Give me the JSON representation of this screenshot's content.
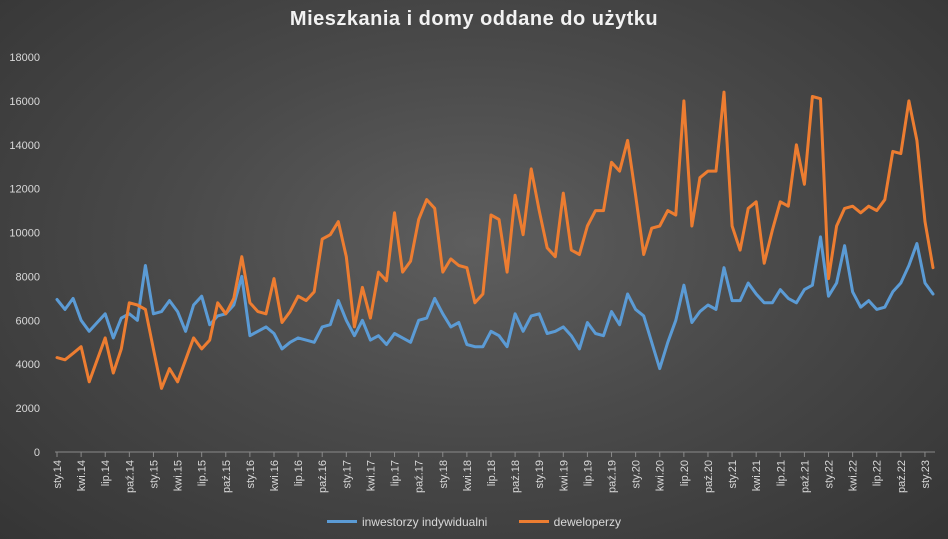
{
  "chart_data": {
    "type": "line",
    "title": "Mieszkania i domy oddane do użytku",
    "xlabel": "",
    "ylabel": "",
    "ylim": [
      0,
      18000
    ],
    "yticks": [
      0,
      2000,
      4000,
      6000,
      8000,
      10000,
      12000,
      14000,
      16000,
      18000
    ],
    "grid": false,
    "legend_position": "bottom",
    "x_tick_labels": [
      "sty.14",
      "kwi.14",
      "lip.14",
      "paź.14",
      "sty.15",
      "kwi.15",
      "lip.15",
      "paź.15",
      "sty.16",
      "kwi.16",
      "lip.16",
      "paź.16",
      "sty.17",
      "kwi.17",
      "lip.17",
      "paź.17",
      "sty.18",
      "kwi.18",
      "lip.18",
      "paź.18",
      "sty.19",
      "kwi.19",
      "lip.19",
      "paź.19",
      "sty.20",
      "kwi.20",
      "lip.20",
      "paź.20",
      "sty.21",
      "kwi.21",
      "lip.21",
      "paź.21",
      "sty.22",
      "kwi.22",
      "lip.22",
      "paź.22",
      "sty.23"
    ],
    "x_range": [
      "sty.14",
      "lut.23"
    ],
    "series": [
      {
        "name": "inwestorzy indywidualni",
        "color": "#5b9bd5",
        "values": [
          6950,
          6500,
          7000,
          6000,
          5500,
          5900,
          6300,
          5200,
          6100,
          6300,
          6000,
          8500,
          6300,
          6400,
          6900,
          6400,
          5500,
          6700,
          7100,
          5800,
          6200,
          6300,
          6700,
          8000,
          5300,
          5500,
          5700,
          5400,
          4700,
          5000,
          5200,
          5100,
          5000,
          5700,
          5800,
          6900,
          6000,
          5300,
          6000,
          5100,
          5300,
          4900,
          5400,
          5200,
          5000,
          6000,
          6100,
          7000,
          6300,
          5700,
          5900,
          4900,
          4800,
          4800,
          5500,
          5300,
          4800,
          6300,
          5500,
          6200,
          6300,
          5400,
          5500,
          5700,
          5300,
          4700,
          5900,
          5400,
          5300,
          6400,
          5800,
          7200,
          6500,
          6200,
          5000,
          3800,
          5000,
          6000,
          7600,
          5900,
          6400,
          6700,
          6500,
          8400,
          6900,
          6900,
          7700,
          7200,
          6800,
          6800,
          7400,
          7000,
          6800,
          7400,
          7600,
          9800,
          7100,
          7700,
          9400,
          7300,
          6600,
          6900,
          6500,
          6600,
          7300,
          7700,
          8500,
          9500,
          7700,
          7200
        ]
      },
      {
        "name": "deweloperzy",
        "color": "#ed7d31",
        "values": [
          4300,
          4200,
          4500,
          4800,
          3200,
          4200,
          5200,
          3600,
          4700,
          6800,
          6700,
          6500,
          4700,
          2900,
          3800,
          3200,
          4200,
          5200,
          4700,
          5100,
          6800,
          6300,
          7000,
          8900,
          6800,
          6400,
          6300,
          7900,
          5900,
          6400,
          7100,
          6900,
          7300,
          9700,
          9900,
          10500,
          8900,
          5700,
          7500,
          6100,
          8200,
          7800,
          10900,
          8200,
          8700,
          10600,
          11500,
          11100,
          8200,
          8800,
          8500,
          8400,
          6800,
          7200,
          10800,
          10600,
          8200,
          11700,
          9900,
          12900,
          11000,
          9300,
          8900,
          11800,
          9200,
          9000,
          10300,
          11000,
          11000,
          13200,
          12800,
          14200,
          11700,
          9000,
          10200,
          10300,
          11000,
          10800,
          16000,
          10300,
          12500,
          12800,
          12800,
          16400,
          10300,
          9200,
          11100,
          11400,
          8600,
          10100,
          11400,
          11200,
          14000,
          12200,
          16200,
          16100,
          7900,
          10300,
          11100,
          11200,
          10900,
          11200,
          11000,
          11500,
          13700,
          13600,
          16000,
          14200,
          10500,
          8400
        ]
      }
    ]
  }
}
